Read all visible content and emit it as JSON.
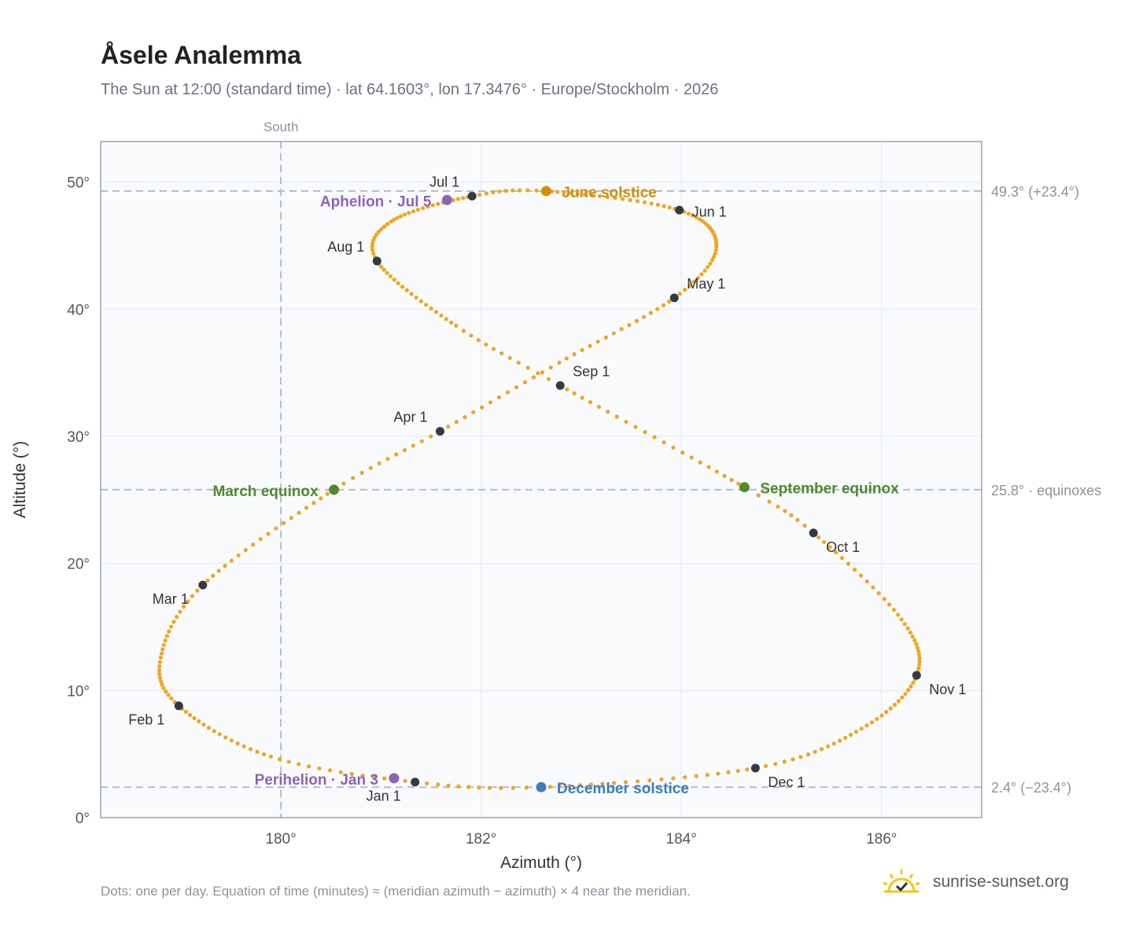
{
  "title": "Åsele Analemma",
  "subtitle": "The Sun at 12:00 (standard time) · lat 64.1603°, lon 17.3476° · Europe/Stockholm · 2026",
  "footnote": "Dots: one per day. Equation of time (minutes) ≈ (meridian azimuth − azimuth) × 4 near the meridian.",
  "brand": {
    "text": "sunrise-sunset.org",
    "icon": "sun-logo-icon"
  },
  "colors": {
    "curve": "#f2a51f",
    "month_marker": "#333a44",
    "solstice_june": "#d48f00",
    "solstice_december": "#3b7dc4",
    "equinox": "#4f8a2f",
    "apsis": "#8e63b3",
    "reference_line": "#b7bec8",
    "plot_bg": "#f8fafc",
    "grid": "#e3e8ef",
    "frame": "#9ba5b2"
  },
  "chart_data": {
    "type": "scatter",
    "title": "Åsele Analemma",
    "xlabel": "Azimuth (°)",
    "ylabel": "Altitude (°)",
    "xlim": [
      178.2,
      187.0
    ],
    "ylim": [
      0,
      53.2
    ],
    "xticks": [
      180,
      182,
      184,
      186
    ],
    "xtick_labels": [
      "180°",
      "182°",
      "184°",
      "186°"
    ],
    "yticks": [
      0,
      10,
      20,
      30,
      40,
      50
    ],
    "ytick_labels": [
      "0°",
      "10°",
      "20°",
      "30°",
      "40°",
      "50°"
    ],
    "grid": true,
    "meridian": {
      "x": 180,
      "label": "South"
    },
    "reference_lines": [
      {
        "y": 49.3,
        "label": "49.3° (+23.4°)"
      },
      {
        "y": 25.8,
        "label": "25.8° · equinoxes"
      },
      {
        "y": 2.4,
        "label": "2.4° (−23.4°)"
      }
    ],
    "series": [
      {
        "kind": "daily",
        "path_points": [
          {
            "day": 1,
            "azimuth": 181.34,
            "altitude": 2.8
          },
          {
            "day": 15,
            "azimuth": 179.9,
            "altitude": 4.8
          },
          {
            "day": 32,
            "azimuth": 178.98,
            "altitude": 8.8
          },
          {
            "day": 45,
            "azimuth": 178.8,
            "altitude": 12.6
          },
          {
            "day": 60,
            "azimuth": 179.22,
            "altitude": 18.3
          },
          {
            "day": 79,
            "azimuth": 180.53,
            "altitude": 25.8
          },
          {
            "day": 91,
            "azimuth": 181.59,
            "altitude": 30.4
          },
          {
            "day": 105,
            "azimuth": 182.78,
            "altitude": 35.8
          },
          {
            "day": 121,
            "azimuth": 183.93,
            "altitude": 40.9
          },
          {
            "day": 135,
            "azimuth": 184.35,
            "altitude": 44.9
          },
          {
            "day": 152,
            "azimuth": 183.98,
            "altitude": 47.8
          },
          {
            "day": 172,
            "azimuth": 182.65,
            "altitude": 49.3
          },
          {
            "day": 182,
            "azimuth": 181.91,
            "altitude": 48.9
          },
          {
            "day": 200,
            "azimuth": 181.1,
            "altitude": 46.9
          },
          {
            "day": 213,
            "azimuth": 180.96,
            "altitude": 43.8
          },
          {
            "day": 232,
            "azimuth": 181.75,
            "altitude": 38.7
          },
          {
            "day": 244,
            "azimuth": 182.79,
            "altitude": 34.0
          },
          {
            "day": 266,
            "azimuth": 184.63,
            "altitude": 26.0
          },
          {
            "day": 274,
            "azimuth": 185.32,
            "altitude": 22.4
          },
          {
            "day": 290,
            "azimuth": 186.2,
            "altitude": 15.6
          },
          {
            "day": 305,
            "azimuth": 186.35,
            "altitude": 11.2
          },
          {
            "day": 320,
            "azimuth": 185.8,
            "altitude": 7.0
          },
          {
            "day": 335,
            "azimuth": 184.74,
            "altitude": 3.9
          },
          {
            "day": 355,
            "azimuth": 182.6,
            "altitude": 2.4
          },
          {
            "day": 366,
            "azimuth": 181.34,
            "altitude": 2.8
          }
        ]
      }
    ],
    "month_markers": [
      {
        "label": "Jan 1",
        "azimuth": 181.34,
        "altitude": 2.8,
        "label_pos": "below-left"
      },
      {
        "label": "Feb 1",
        "azimuth": 178.98,
        "altitude": 8.8,
        "label_pos": "below-left"
      },
      {
        "label": "Mar 1",
        "azimuth": 179.22,
        "altitude": 18.3,
        "label_pos": "below-left"
      },
      {
        "label": "Apr 1",
        "azimuth": 181.59,
        "altitude": 30.4,
        "label_pos": "above-left"
      },
      {
        "label": "May 1",
        "azimuth": 183.93,
        "altitude": 40.9,
        "label_pos": "above-right"
      },
      {
        "label": "Jun 1",
        "azimuth": 183.98,
        "altitude": 47.8,
        "label_pos": "right"
      },
      {
        "label": "Jul 1",
        "azimuth": 181.91,
        "altitude": 48.9,
        "label_pos": "above-left"
      },
      {
        "label": "Aug 1",
        "azimuth": 180.96,
        "altitude": 43.8,
        "label_pos": "left"
      },
      {
        "label": "Sep 1",
        "azimuth": 182.79,
        "altitude": 34.0,
        "label_pos": "above-right"
      },
      {
        "label": "Oct 1",
        "azimuth": 185.32,
        "altitude": 22.4,
        "label_pos": "below-right"
      },
      {
        "label": "Nov 1",
        "azimuth": 186.35,
        "altitude": 11.2,
        "label_pos": "below-right"
      },
      {
        "label": "Dec 1",
        "azimuth": 184.74,
        "altitude": 3.9,
        "label_pos": "below-right"
      }
    ],
    "events": [
      {
        "label": "June solstice",
        "azimuth": 182.65,
        "altitude": 49.3,
        "color_key": "solstice_june",
        "label_pos": "right"
      },
      {
        "label": "December solstice",
        "azimuth": 182.6,
        "altitude": 2.4,
        "color_key": "solstice_december",
        "label_pos": "right"
      },
      {
        "label": "March equinox",
        "azimuth": 180.53,
        "altitude": 25.8,
        "color_key": "equinox",
        "label_pos": "left"
      },
      {
        "label": "September equinox",
        "azimuth": 184.63,
        "altitude": 26.0,
        "color_key": "equinox",
        "label_pos": "right"
      },
      {
        "label": "Aphelion · Jul 5",
        "azimuth": 181.66,
        "altitude": 48.6,
        "color_key": "apsis",
        "label_pos": "left"
      },
      {
        "label": "Perihelion · Jan 3",
        "azimuth": 181.13,
        "altitude": 3.1,
        "color_key": "apsis",
        "label_pos": "left"
      }
    ]
  }
}
